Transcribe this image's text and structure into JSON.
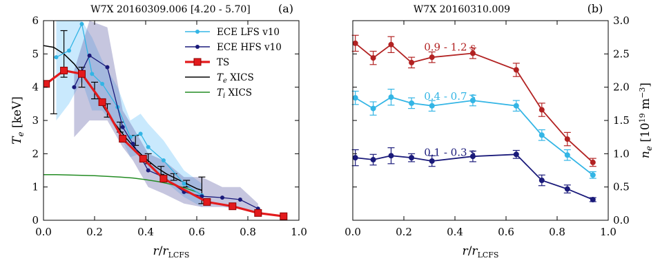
{
  "chart_data": [
    {
      "type": "line",
      "panel_tag": "(a)",
      "title": "W7X 20160309.006 [4.20 - 5.70]",
      "xlabel": "r/r_LCFS",
      "ylabel": "T_e [keV]",
      "xlim": [
        0.0,
        1.0
      ],
      "ylim": [
        0,
        6
      ],
      "xticks": [
        "0.0",
        "0.2",
        "0.4",
        "0.6",
        "0.8",
        "1.0"
      ],
      "yticks": [
        "0",
        "1",
        "2",
        "3",
        "4",
        "5",
        "6"
      ],
      "legend_position": "top-right",
      "series": [
        {
          "name": "ECE LFS v10",
          "color": "#33b5e5",
          "marker": "circle",
          "x": [
            0.05,
            0.1,
            0.15,
            0.19,
            0.23,
            0.29,
            0.34,
            0.38,
            0.41,
            0.47,
            0.55,
            0.62
          ],
          "y": [
            4.9,
            5.1,
            5.9,
            4.4,
            4.1,
            3.4,
            2.5,
            2.6,
            2.2,
            1.8,
            1.1,
            0.75
          ],
          "band_upper": [
            6.0,
            6.0,
            6.0,
            5.5,
            4.8,
            4.0,
            3.0,
            3.2,
            2.9,
            2.4,
            1.5,
            1.1
          ],
          "band_lower": [
            3.0,
            3.5,
            4.2,
            3.3,
            3.3,
            2.7,
            1.9,
            2.0,
            1.6,
            1.2,
            0.7,
            0.4
          ]
        },
        {
          "name": "ECE HFS v10",
          "color": "#1a1a7a",
          "marker": "circle",
          "x": [
            0.12,
            0.18,
            0.25,
            0.31,
            0.35,
            0.41,
            0.47,
            0.55,
            0.62,
            0.7,
            0.77,
            0.84
          ],
          "y": [
            4.0,
            4.95,
            4.6,
            2.8,
            2.3,
            1.5,
            1.3,
            0.85,
            0.72,
            0.68,
            0.62,
            0.35
          ],
          "band_upper": [
            4.5,
            6.0,
            5.8,
            3.3,
            2.8,
            2.0,
            1.8,
            1.3,
            1.3,
            1.0,
            1.0,
            0.5
          ],
          "band_lower": [
            2.5,
            3.0,
            3.0,
            2.2,
            1.8,
            1.0,
            0.8,
            0.5,
            0.4,
            0.4,
            0.35,
            0.2
          ]
        },
        {
          "name": "TS",
          "color": "#e31a1c",
          "marker": "square",
          "x": [
            0.01,
            0.08,
            0.15,
            0.23,
            0.31,
            0.39,
            0.47,
            0.64,
            0.74,
            0.84,
            0.94
          ],
          "y": [
            4.1,
            4.5,
            4.4,
            3.55,
            2.45,
            1.85,
            1.25,
            0.55,
            0.42,
            0.22,
            0.12
          ]
        },
        {
          "name": "T_e XICS",
          "color": "#000000",
          "marker": "none",
          "x": [
            0.0,
            0.04,
            0.08,
            0.12,
            0.16,
            0.2,
            0.24,
            0.28,
            0.32,
            0.36,
            0.4,
            0.44,
            0.48,
            0.52,
            0.56,
            0.6,
            0.62
          ],
          "y": [
            5.25,
            5.2,
            5.0,
            4.7,
            4.3,
            3.85,
            3.35,
            2.9,
            2.5,
            2.15,
            1.85,
            1.6,
            1.4,
            1.25,
            1.1,
            0.95,
            0.9
          ],
          "errorbar_x": [
            0.04,
            0.08,
            0.15,
            0.2,
            0.25,
            0.3,
            0.36,
            0.41,
            0.46,
            0.51,
            0.56,
            0.62
          ],
          "errorbar_y": [
            5.2,
            5.0,
            4.3,
            3.9,
            3.3,
            2.8,
            2.4,
            1.85,
            1.5,
            1.3,
            1.1,
            0.9
          ],
          "errorbar_err": [
            2.0,
            0.7,
            0.3,
            0.25,
            0.2,
            0.15,
            0.15,
            0.15,
            0.12,
            0.1,
            0.1,
            0.4
          ]
        },
        {
          "name": "T_i XICS",
          "color": "#228b22",
          "marker": "none",
          "x": [
            0.0,
            0.05,
            0.1,
            0.15,
            0.2,
            0.25,
            0.3,
            0.35,
            0.4,
            0.45,
            0.5,
            0.55,
            0.6,
            0.62
          ],
          "y": [
            1.37,
            1.37,
            1.36,
            1.35,
            1.34,
            1.32,
            1.3,
            1.27,
            1.22,
            1.16,
            1.08,
            0.98,
            0.85,
            0.75
          ]
        }
      ]
    },
    {
      "type": "line",
      "panel_tag": "(b)",
      "title": "W7X 20160310.009",
      "xlabel": "r/r_LCFS",
      "ylabel": "n_e [10^19 m^-3]",
      "xlim": [
        0.0,
        1.0
      ],
      "ylim": [
        0.0,
        3.0
      ],
      "xticks": [
        "0.0",
        "0.2",
        "0.4",
        "0.6",
        "0.8",
        "1.0"
      ],
      "yticks": [
        "0.0",
        "0.5",
        "1.0",
        "1.5",
        "2.0",
        "2.5",
        "3.0"
      ],
      "series": [
        {
          "name": "0.9 - 1.2 s",
          "color": "#b22222",
          "x": [
            0.01,
            0.08,
            0.15,
            0.23,
            0.31,
            0.47,
            0.64,
            0.74,
            0.84,
            0.94
          ],
          "y": [
            2.66,
            2.44,
            2.64,
            2.37,
            2.45,
            2.51,
            2.26,
            1.66,
            1.22,
            0.87
          ],
          "err": [
            0.12,
            0.1,
            0.12,
            0.08,
            0.08,
            0.08,
            0.1,
            0.1,
            0.1,
            0.06
          ]
        },
        {
          "name": "0.4 - 0.7 s",
          "color": "#33b5e5",
          "x": [
            0.01,
            0.08,
            0.15,
            0.23,
            0.31,
            0.47,
            0.64,
            0.74,
            0.84,
            0.94
          ],
          "y": [
            1.84,
            1.68,
            1.85,
            1.76,
            1.72,
            1.8,
            1.72,
            1.28,
            0.98,
            0.68
          ],
          "err": [
            0.1,
            0.1,
            0.12,
            0.08,
            0.08,
            0.08,
            0.08,
            0.08,
            0.08,
            0.05
          ]
        },
        {
          "name": "0.1 - 0.3 s",
          "color": "#1a1a7a",
          "x": [
            0.01,
            0.08,
            0.15,
            0.23,
            0.31,
            0.47,
            0.64,
            0.74,
            0.84,
            0.94
          ],
          "y": [
            0.94,
            0.91,
            0.97,
            0.94,
            0.89,
            0.96,
            0.99,
            0.6,
            0.47,
            0.31
          ],
          "err": [
            0.12,
            0.08,
            0.12,
            0.06,
            0.08,
            0.08,
            0.06,
            0.08,
            0.06,
            0.03
          ]
        }
      ]
    }
  ]
}
